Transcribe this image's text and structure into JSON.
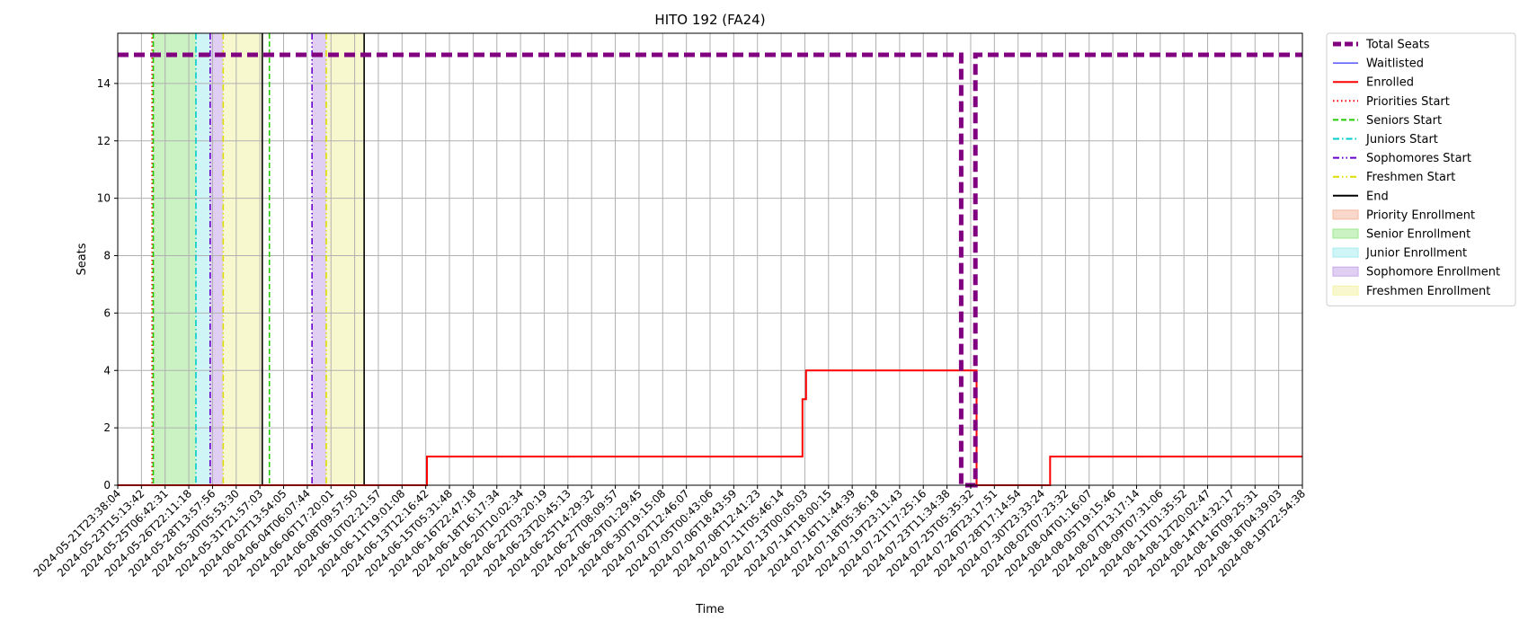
{
  "chart_data": {
    "type": "line",
    "title": "HITO 192 (FA24)",
    "xlabel": "Time",
    "ylabel": "Seats",
    "ylim": [
      0,
      15.75
    ],
    "y_ticks": [
      0,
      2,
      4,
      6,
      8,
      10,
      12,
      14
    ],
    "grid": true,
    "legend_placement": "outside-top-right",
    "x_tick_labels": [
      "2024-05-21T23:38:04",
      "2024-05-23T15:13:42",
      "2024-05-25T06:42:31",
      "2024-05-26T22:11:18",
      "2024-05-28T13:57:56",
      "2024-05-30T05:53:30",
      "2024-05-31T21:57:03",
      "2024-06-02T13:54:05",
      "2024-06-04T06:07:44",
      "2024-06-06T17:20:01",
      "2024-06-08T09:57:50",
      "2024-06-10T02:21:57",
      "2024-06-11T19:01:08",
      "2024-06-13T12:16:42",
      "2024-06-15T05:31:48",
      "2024-06-16T22:47:18",
      "2024-06-18T16:17:34",
      "2024-06-20T10:02:34",
      "2024-06-22T03:20:19",
      "2024-06-23T20:45:13",
      "2024-06-25T14:29:32",
      "2024-06-27T08:09:57",
      "2024-06-29T01:29:45",
      "2024-06-30T19:15:08",
      "2024-07-02T12:46:07",
      "2024-07-05T00:43:06",
      "2024-07-06T18:43:59",
      "2024-07-08T12:41:23",
      "2024-07-11T05:46:14",
      "2024-07-13T00:05:03",
      "2024-07-14T18:00:15",
      "2024-07-16T11:44:39",
      "2024-07-18T05:36:18",
      "2024-07-19T23:11:43",
      "2024-07-21T17:25:16",
      "2024-07-23T11:34:38",
      "2024-07-25T05:35:32",
      "2024-07-26T23:17:51",
      "2024-07-28T17:14:54",
      "2024-07-30T23:33:24",
      "2024-08-02T07:23:32",
      "2024-08-04T01:16:07",
      "2024-08-05T19:15:46",
      "2024-08-07T13:17:14",
      "2024-08-09T07:31:06",
      "2024-08-11T01:35:52",
      "2024-08-12T20:02:47",
      "2024-08-14T14:32:17",
      "2024-08-16T09:25:31",
      "2024-08-18T04:39:03",
      "2024-08-19T22:54:38"
    ],
    "series": [
      {
        "name": "Total Seats",
        "color": "#800080",
        "style": "dashed-thick",
        "points": [
          [
            0,
            15
          ],
          [
            35.6,
            15
          ],
          [
            35.6,
            0
          ],
          [
            36.2,
            0
          ],
          [
            36.2,
            15
          ],
          [
            50,
            15
          ]
        ]
      },
      {
        "name": "Waitlisted",
        "color": "#0000ff",
        "style": "solid-thin",
        "points": [
          [
            0,
            0
          ],
          [
            50,
            0
          ]
        ]
      },
      {
        "name": "Enrolled",
        "color": "#ff0000",
        "style": "solid",
        "points": [
          [
            0,
            0
          ],
          [
            13.05,
            0
          ],
          [
            13.05,
            1
          ],
          [
            28.9,
            1
          ],
          [
            28.9,
            3
          ],
          [
            29.05,
            3
          ],
          [
            29.05,
            4
          ],
          [
            36.25,
            4
          ],
          [
            36.25,
            0
          ],
          [
            39.35,
            0
          ],
          [
            39.35,
            1
          ],
          [
            50,
            1
          ]
        ]
      }
    ],
    "vertical_markers": [
      {
        "name": "Priorities Start",
        "color": "#ff0000",
        "style": "dotted",
        "x": [
          1.45
        ]
      },
      {
        "name": "Seniors Start",
        "color": "#22cc00",
        "style": "dashed",
        "x": [
          1.5,
          6.4
        ]
      },
      {
        "name": "Juniors Start",
        "color": "#00cccc",
        "style": "dashdot",
        "x": [
          3.3
        ]
      },
      {
        "name": "Sophomores Start",
        "color": "#6600cc",
        "style": "dashdotdot",
        "x": [
          3.9,
          8.2
        ]
      },
      {
        "name": "Freshmen Start",
        "color": "#dddd00",
        "style": "dashdotdot",
        "x": [
          4.45,
          8.8
        ]
      },
      {
        "name": "End",
        "color": "#000000",
        "style": "solid",
        "x": [
          6.1,
          10.4
        ]
      }
    ],
    "shaded_regions": [
      {
        "name": "Priority Enrollment",
        "color": "#f4b8a0",
        "spans": []
      },
      {
        "name": "Senior Enrollment",
        "color": "#9fe88f",
        "spans": [
          [
            1.5,
            3.3
          ]
        ]
      },
      {
        "name": "Junior Enrollment",
        "color": "#a8ecf0",
        "spans": [
          [
            3.3,
            3.9
          ]
        ]
      },
      {
        "name": "Sophomore Enrollment",
        "color": "#c7a8ea",
        "spans": [
          [
            3.9,
            4.45
          ],
          [
            8.2,
            8.8
          ]
        ]
      },
      {
        "name": "Freshmen Enrollment",
        "color": "#f3f3a8",
        "spans": [
          [
            4.45,
            6.1
          ],
          [
            8.8,
            10.4
          ]
        ]
      }
    ],
    "legend": [
      "Total Seats",
      "Waitlisted",
      "Enrolled",
      "Priorities Start",
      "Seniors Start",
      "Juniors Start",
      "Sophomores Start",
      "Freshmen Start",
      "End",
      "Priority Enrollment",
      "Senior Enrollment",
      "Junior Enrollment",
      "Sophomore Enrollment",
      "Freshmen Enrollment"
    ]
  }
}
